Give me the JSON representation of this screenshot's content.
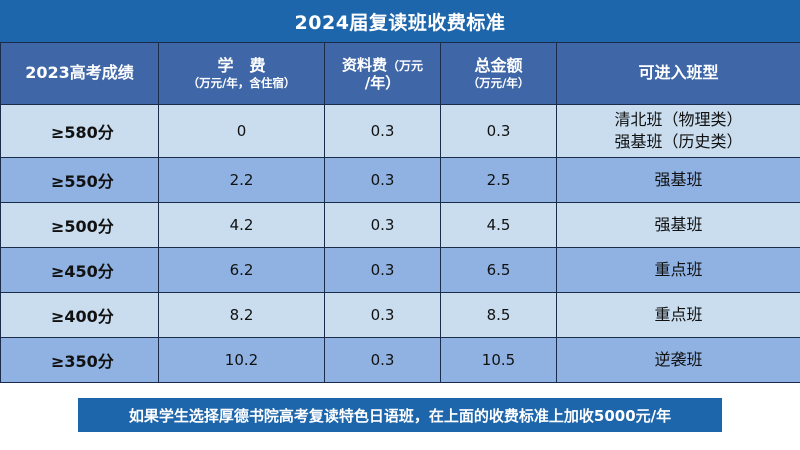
{
  "title": "2024届复读班收费标准",
  "headers": {
    "score": "2023高考成绩",
    "tuition_main": "学　费",
    "tuition_sub": "（万元/年，含住宿）",
    "materials_main": "资料费",
    "materials_unit1": "（万元",
    "materials_unit2": "/年）",
    "total_main": "总金额",
    "total_sub": "（万元/年）",
    "class": "可进入班型"
  },
  "rows": [
    {
      "score": "≥580分",
      "tuition": "0",
      "materials": "0.3",
      "total": "0.3",
      "class_lines": [
        "清北班（物理类）",
        "强基班（历史类）"
      ]
    },
    {
      "score": "≥550分",
      "tuition": "2.2",
      "materials": "0.3",
      "total": "2.5",
      "class_lines": [
        "强基班"
      ]
    },
    {
      "score": "≥500分",
      "tuition": "4.2",
      "materials": "0.3",
      "total": "4.5",
      "class_lines": [
        "强基班"
      ]
    },
    {
      "score": "≥450分",
      "tuition": "6.2",
      "materials": "0.3",
      "total": "6.5",
      "class_lines": [
        "重点班"
      ]
    },
    {
      "score": "≥400分",
      "tuition": "8.2",
      "materials": "0.3",
      "total": "8.5",
      "class_lines": [
        "重点班"
      ]
    },
    {
      "score": "≥350分",
      "tuition": "10.2",
      "materials": "0.3",
      "total": "10.5",
      "class_lines": [
        "逆袭班"
      ]
    }
  ],
  "footer_note": "如果学生选择厚德书院高考复读特色日语班，在上面的收费标准上加收5000元/年",
  "colors": {
    "banner": "#1e66ab",
    "header": "#3f67a8",
    "row_light": "#c9ddef",
    "row_dark": "#8fb2e2"
  }
}
